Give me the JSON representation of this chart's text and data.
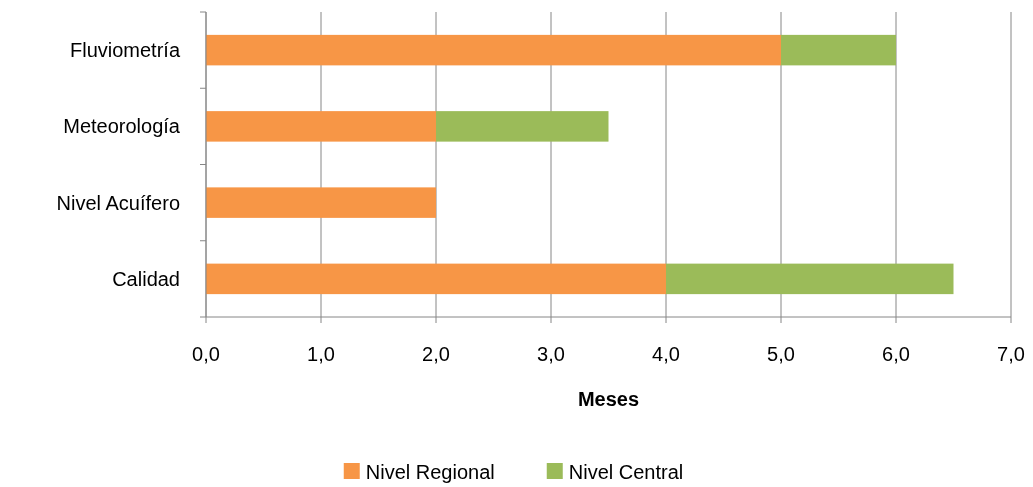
{
  "chart_data": {
    "type": "bar",
    "orientation": "horizontal",
    "stacked": true,
    "xlabel": "Meses",
    "categories": [
      "Fluviometría",
      "Meteorología",
      "Nivel Acuífero",
      "Calidad"
    ],
    "series": [
      {
        "name": "Nivel Regional",
        "color": "#f79646",
        "values": [
          5,
          2,
          2,
          4
        ]
      },
      {
        "name": "Nivel Central",
        "color": "#9bbb59",
        "values": [
          1,
          1.5,
          0,
          2.5
        ]
      }
    ],
    "xlim": [
      0,
      7
    ],
    "xticks": [
      {
        "value": 0,
        "label": "0,0"
      },
      {
        "value": 1,
        "label": "1,0"
      },
      {
        "value": 2,
        "label": "2,0"
      },
      {
        "value": 3,
        "label": "3,0"
      },
      {
        "value": 4,
        "label": "4,0"
      },
      {
        "value": 5,
        "label": "5,0"
      },
      {
        "value": 6,
        "label": "6,0"
      },
      {
        "value": 7,
        "label": "7,0"
      }
    ],
    "grid": "x",
    "legend": "bottom"
  }
}
